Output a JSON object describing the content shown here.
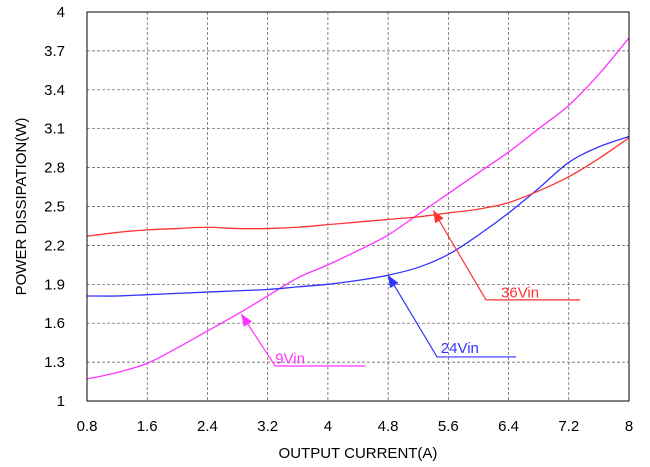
{
  "chart_data": {
    "type": "line",
    "title": "",
    "xlabel": "OUTPUT CURRENT(A)",
    "ylabel": "POWER DISSIPATION(W)",
    "xlim": [
      0.8,
      8
    ],
    "ylim": [
      1,
      4
    ],
    "x_ticks": [
      0.8,
      1.6,
      2.4,
      3.2,
      4,
      4.8,
      5.6,
      6.4,
      7.2,
      8
    ],
    "x_tick_labels": [
      "0.8",
      "1.6",
      "2.4",
      "3.2",
      "4",
      "4.8",
      "5.6",
      "6.4",
      "7.2",
      "8"
    ],
    "y_ticks": [
      1,
      1.3,
      1.6,
      1.9,
      2.2,
      2.5,
      2.8,
      3.1,
      3.4,
      3.7,
      4
    ],
    "y_tick_labels": [
      "1",
      "1.3",
      "1.6",
      "1.9",
      "2.2",
      "2.5",
      "2.8",
      "3.1",
      "3.4",
      "3.7",
      "4"
    ],
    "grid": true,
    "grid_style": "dashed",
    "legend": "none",
    "series": [
      {
        "name": "9Vin",
        "color": "#ff33ff",
        "x": [
          0.8,
          1.2,
          1.6,
          2.0,
          2.4,
          2.8,
          3.2,
          3.6,
          4.0,
          4.4,
          4.8,
          5.2,
          5.6,
          6.0,
          6.4,
          6.8,
          7.2,
          7.6,
          8.0
        ],
        "y": [
          1.17,
          1.22,
          1.29,
          1.41,
          1.54,
          1.67,
          1.81,
          1.95,
          2.05,
          2.16,
          2.28,
          2.44,
          2.6,
          2.76,
          2.92,
          3.1,
          3.28,
          3.52,
          3.8
        ],
        "annotation": {
          "label": "9Vin",
          "label_x": 3.3,
          "label_y": 1.29,
          "arrow_x": 2.85,
          "arrow_y": 1.67,
          "line_from_x": 3.3,
          "line_to_x": 4.5,
          "line_y": 1.27
        }
      },
      {
        "name": "24Vin",
        "color": "#3333ff",
        "x": [
          0.8,
          1.2,
          1.6,
          2.0,
          2.4,
          2.8,
          3.2,
          3.6,
          4.0,
          4.4,
          4.8,
          5.2,
          5.6,
          6.0,
          6.4,
          6.8,
          7.2,
          7.6,
          8.0
        ],
        "y": [
          1.81,
          1.81,
          1.82,
          1.83,
          1.84,
          1.85,
          1.86,
          1.88,
          1.9,
          1.93,
          1.97,
          2.03,
          2.13,
          2.28,
          2.45,
          2.64,
          2.84,
          2.96,
          3.04
        ],
        "annotation": {
          "label": "24Vin",
          "label_x": 5.5,
          "label_y": 1.37,
          "arrow_x": 4.8,
          "arrow_y": 1.97,
          "line_from_x": 5.45,
          "line_to_x": 6.5,
          "line_y": 1.34
        }
      },
      {
        "name": "36Vin",
        "color": "#ff3333",
        "x": [
          0.8,
          1.2,
          1.6,
          2.0,
          2.4,
          2.8,
          3.2,
          3.6,
          4.0,
          4.4,
          4.8,
          5.2,
          5.6,
          6.0,
          6.4,
          6.8,
          7.2,
          7.6,
          8.0
        ],
        "y": [
          2.27,
          2.3,
          2.32,
          2.33,
          2.34,
          2.33,
          2.33,
          2.34,
          2.36,
          2.38,
          2.4,
          2.42,
          2.45,
          2.48,
          2.53,
          2.62,
          2.73,
          2.87,
          3.03
        ],
        "annotation": {
          "label": "36Vin",
          "label_x": 6.3,
          "label_y": 1.8,
          "arrow_x": 5.4,
          "arrow_y": 2.47,
          "line_from_x": 6.1,
          "line_to_x": 7.35,
          "line_y": 1.78
        }
      }
    ]
  }
}
